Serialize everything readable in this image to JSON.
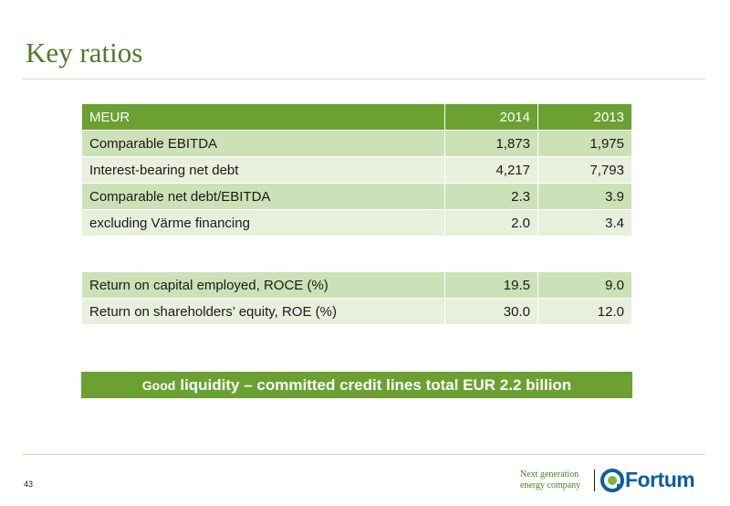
{
  "slide": {
    "title": "Key ratios",
    "page_number": "43"
  },
  "table_main": {
    "header": {
      "label": "MEUR",
      "col1": "2014",
      "col2": "2013"
    },
    "rows": [
      {
        "label": "Comparable EBITDA",
        "v2014": "1,873",
        "v2013": "1,975"
      },
      {
        "label": "Interest-bearing net debt",
        "v2014": "4,217",
        "v2013": "7,793"
      },
      {
        "label": "Comparable net debt/EBITDA",
        "v2014": "2.3",
        "v2013": "3.9"
      },
      {
        "label": "excluding Värme financing",
        "v2014": "2.0",
        "v2013": "3.4"
      }
    ]
  },
  "table_returns": {
    "rows": [
      {
        "label": "Return on capital employed, ROCE (%)",
        "v2014": "19.5",
        "v2013": "9.0"
      },
      {
        "label": "Return on shareholders’ equity, ROE (%)",
        "v2014": "30.0",
        "v2013": "12.0"
      }
    ]
  },
  "banner": {
    "lead": "Good",
    "text": "liquidity – committed credit lines total EUR 2.2 billion"
  },
  "branding": {
    "tagline_line1": "Next generation",
    "tagline_line2": "energy company",
    "logo_text": "Fortum",
    "logo_icon": "fortum-logo-icon",
    "colors": {
      "accent_green": "#6aa131",
      "title_green": "#4f7a28",
      "logo_blue": "#0a5fa0"
    }
  }
}
